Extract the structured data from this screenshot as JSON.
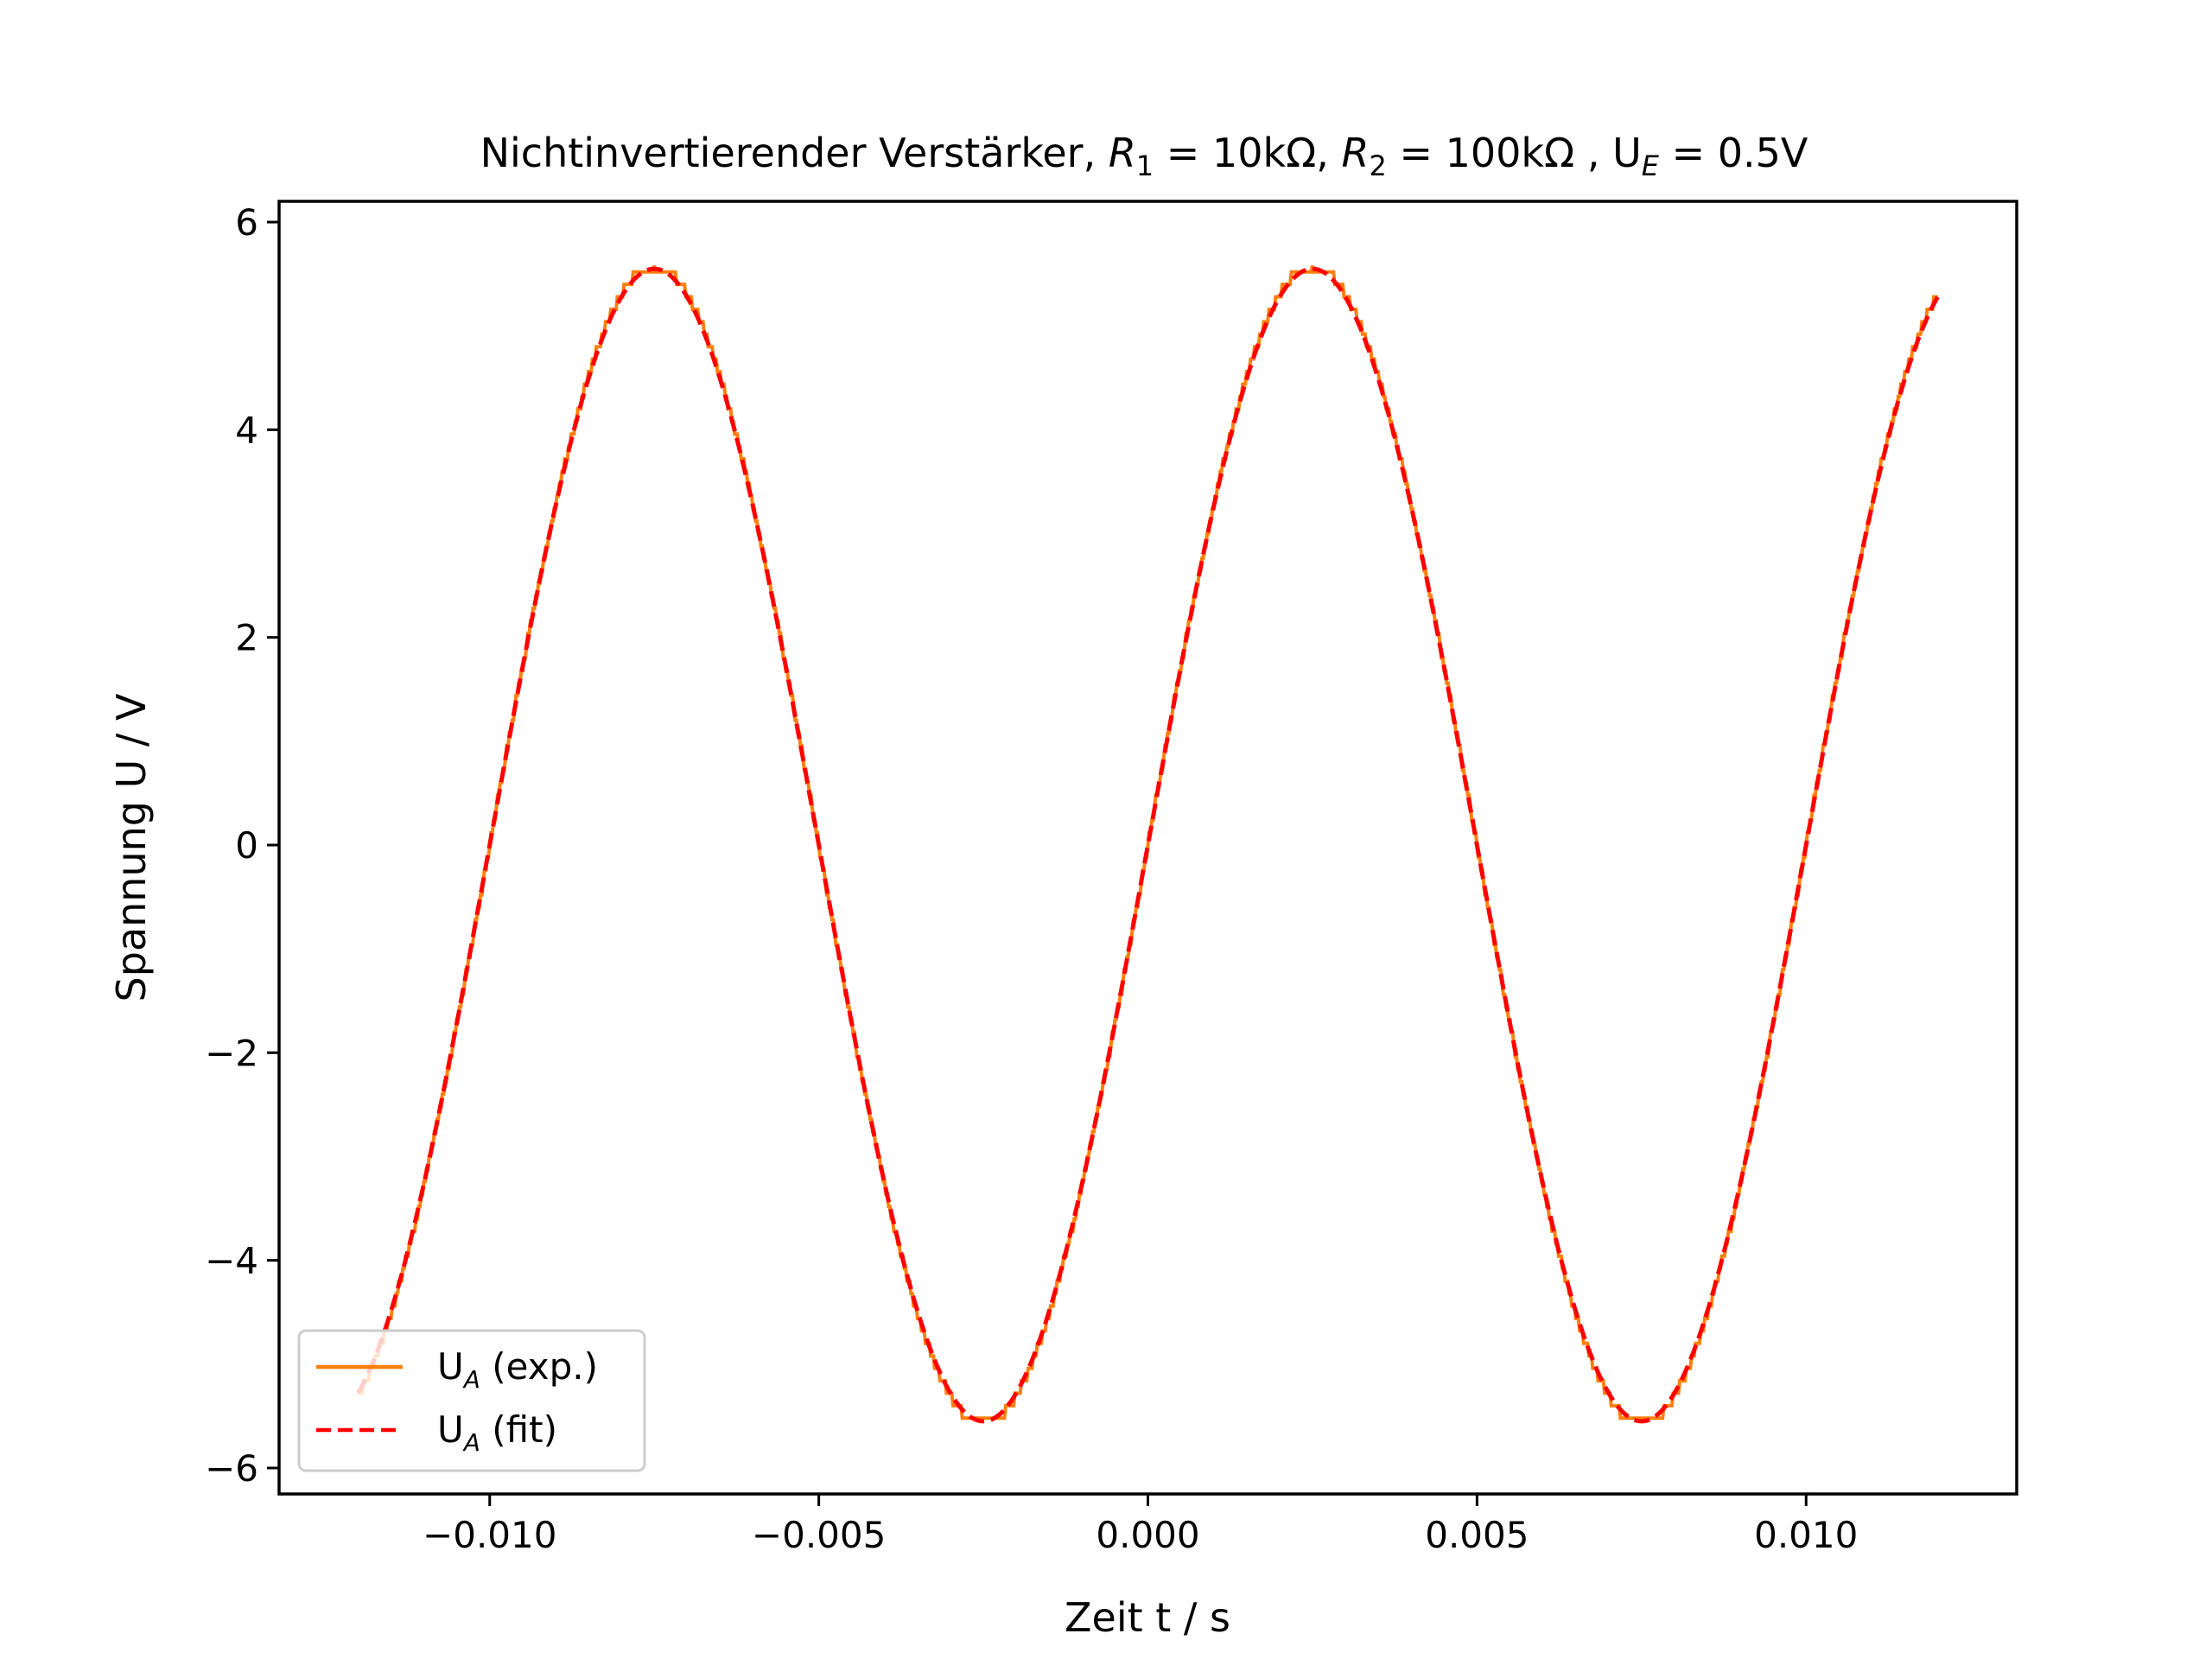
{
  "chart_data": {
    "type": "line",
    "title_parts": {
      "t1": "Nichtinvertierender Verstärker, ",
      "r": "R",
      "sub1": "1",
      "t2": " = 10kΩ, ",
      "sub2": "2",
      "t3": " = 100kΩ , U",
      "subE": "E",
      "t4": " = 0.5V"
    },
    "xlabel": "Zeit t / s",
    "ylabel": "Spannung U / V",
    "xlim": [
      -0.0132,
      0.0132
    ],
    "ylim": [
      -6.25,
      6.2
    ],
    "xticks": [
      -0.01,
      -0.005,
      0.0,
      0.005,
      0.01
    ],
    "xtick_labels": [
      "−0.010",
      "−0.005",
      "0.000",
      "0.005",
      "0.010"
    ],
    "yticks": [
      -6,
      -4,
      -2,
      0,
      2,
      4,
      6
    ],
    "ytick_labels": [
      "−6",
      "−4",
      "−2",
      "0",
      "2",
      "4",
      "6"
    ],
    "grid": false,
    "legend_position": "lower-left",
    "series": [
      {
        "name_main": "U",
        "name_sub": "A",
        "name_rest": " (exp.)",
        "style": "solid",
        "color": "#ff7f0e",
        "description": "sampled sine, quantized ~0.12 V steps",
        "amplitude": 5.58,
        "period": 0.01,
        "x_range": [
          -0.012,
          0.012
        ]
      },
      {
        "name_main": "U",
        "name_sub": "A",
        "name_rest": " (fit)",
        "style": "dashed",
        "color": "#ff0000",
        "amplitude": 5.55,
        "period": 0.01,
        "x_range": [
          -0.012,
          0.012
        ]
      }
    ]
  }
}
